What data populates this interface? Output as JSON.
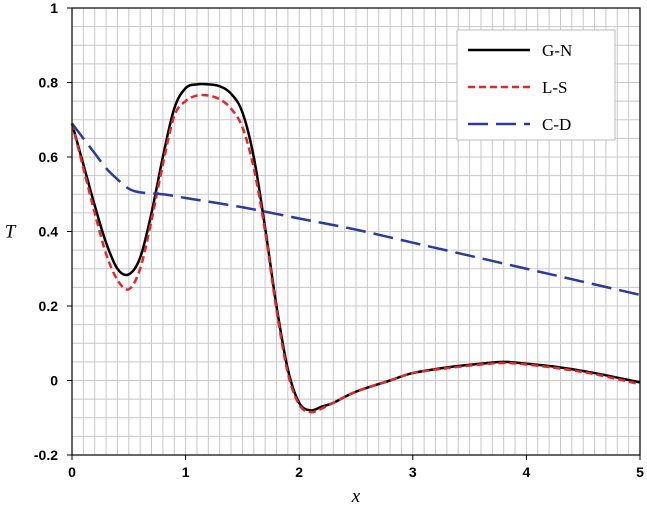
{
  "chart_data": {
    "type": "line",
    "title": "",
    "xlabel": "x",
    "ylabel": "T",
    "xlim": [
      0,
      5
    ],
    "ylim": [
      -0.2,
      1
    ],
    "grid": true,
    "legend_position": "top-right",
    "x_ticks": [
      "0",
      "1",
      "2",
      "3",
      "4",
      "5"
    ],
    "y_ticks": [
      "-0.2",
      "0",
      "0.2",
      "0.4",
      "0.6",
      "0.8",
      "1"
    ],
    "x_tick_values": [
      0,
      1,
      2,
      3,
      4,
      5
    ],
    "y_tick_values": [
      -0.2,
      0,
      0.2,
      0.4,
      0.6,
      0.8,
      1
    ],
    "series": [
      {
        "name": "G-N",
        "color": "#000000",
        "style": "solid",
        "x": [
          0,
          0.1,
          0.2,
          0.3,
          0.4,
          0.5,
          0.6,
          0.7,
          0.8,
          0.9,
          1.0,
          1.1,
          1.2,
          1.3,
          1.4,
          1.5,
          1.6,
          1.7,
          1.8,
          1.9,
          2.0,
          2.1,
          2.2,
          2.3,
          2.5,
          2.8,
          3.0,
          3.3,
          3.6,
          3.8,
          4.0,
          4.3,
          4.6,
          5.0
        ],
        "y": [
          0.69,
          0.58,
          0.47,
          0.37,
          0.3,
          0.285,
          0.33,
          0.45,
          0.6,
          0.73,
          0.785,
          0.795,
          0.795,
          0.79,
          0.77,
          0.72,
          0.6,
          0.41,
          0.2,
          0.03,
          -0.06,
          -0.08,
          -0.07,
          -0.06,
          -0.03,
          0.0,
          0.02,
          0.035,
          0.045,
          0.05,
          0.045,
          0.035,
          0.02,
          -0.005
        ]
      },
      {
        "name": "L-S",
        "color": "#e8262a",
        "style": "short-dash",
        "x": [
          0,
          0.1,
          0.2,
          0.3,
          0.4,
          0.5,
          0.6,
          0.7,
          0.8,
          0.9,
          1.0,
          1.1,
          1.2,
          1.3,
          1.4,
          1.5,
          1.6,
          1.7,
          1.8,
          1.9,
          2.0,
          2.1,
          2.2,
          2.3,
          2.5,
          2.8,
          3.0,
          3.3,
          3.6,
          3.8,
          4.0,
          4.3,
          4.6,
          5.0
        ],
        "y": [
          0.69,
          0.57,
          0.45,
          0.34,
          0.27,
          0.245,
          0.3,
          0.43,
          0.58,
          0.71,
          0.75,
          0.765,
          0.765,
          0.755,
          0.73,
          0.68,
          0.57,
          0.4,
          0.19,
          0.02,
          -0.065,
          -0.085,
          -0.075,
          -0.06,
          -0.03,
          0.0,
          0.02,
          0.033,
          0.043,
          0.047,
          0.043,
          0.032,
          0.017,
          -0.01
        ]
      },
      {
        "name": "C-D",
        "color": "#2a3a9e",
        "style": "long-dash",
        "x": [
          0,
          0.1,
          0.2,
          0.3,
          0.4,
          0.5,
          0.6,
          0.8,
          1.0,
          1.5,
          2.0,
          2.5,
          3.0,
          3.5,
          4.0,
          4.5,
          5.0
        ],
        "y": [
          0.69,
          0.65,
          0.61,
          0.57,
          0.54,
          0.515,
          0.505,
          0.5,
          0.49,
          0.465,
          0.435,
          0.405,
          0.37,
          0.335,
          0.3,
          0.265,
          0.23
        ]
      }
    ]
  }
}
